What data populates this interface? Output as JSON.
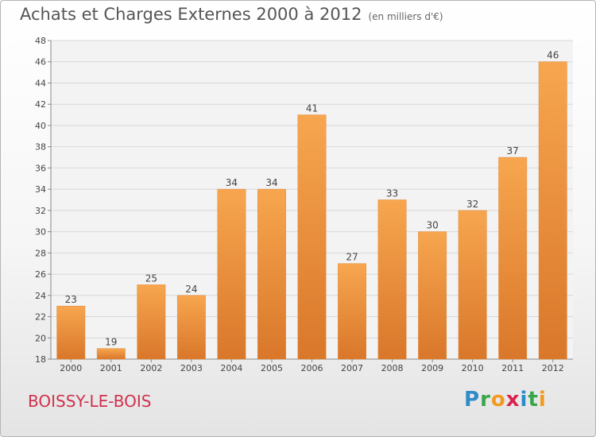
{
  "title": "Achats et Charges Externes 2000 à 2012",
  "subtitle": "(en milliers d'€)",
  "location": "BOISSY-LE-BOIS",
  "logo": {
    "text": "Proxiti",
    "letters": [
      {
        "ch": "P",
        "color": "#2e8bc9"
      },
      {
        "ch": "r",
        "color": "#3aa64a"
      },
      {
        "ch": "o",
        "color": "#f29a1f"
      },
      {
        "ch": "x",
        "color": "#d9234e"
      },
      {
        "ch": "i",
        "color": "#2e8bc9"
      },
      {
        "ch": "t",
        "color": "#3aa64a"
      },
      {
        "ch": "i",
        "color": "#f29a1f"
      }
    ]
  },
  "colors": {
    "bar_light": "#f7a64f",
    "bar_dark": "#d9772a",
    "title": "#555555",
    "location": "#d0314d"
  },
  "chart_data": {
    "type": "bar",
    "categories": [
      "2000",
      "2001",
      "2002",
      "2003",
      "2004",
      "2005",
      "2006",
      "2007",
      "2008",
      "2009",
      "2010",
      "2011",
      "2012"
    ],
    "values": [
      23,
      19,
      25,
      24,
      34,
      34,
      41,
      27,
      33,
      30,
      32,
      37,
      46
    ],
    "ylim": [
      18,
      48
    ],
    "yticks": [
      18,
      20,
      22,
      24,
      26,
      28,
      30,
      32,
      34,
      36,
      38,
      40,
      42,
      44,
      46,
      48
    ],
    "grid": true,
    "data_labels": true
  }
}
